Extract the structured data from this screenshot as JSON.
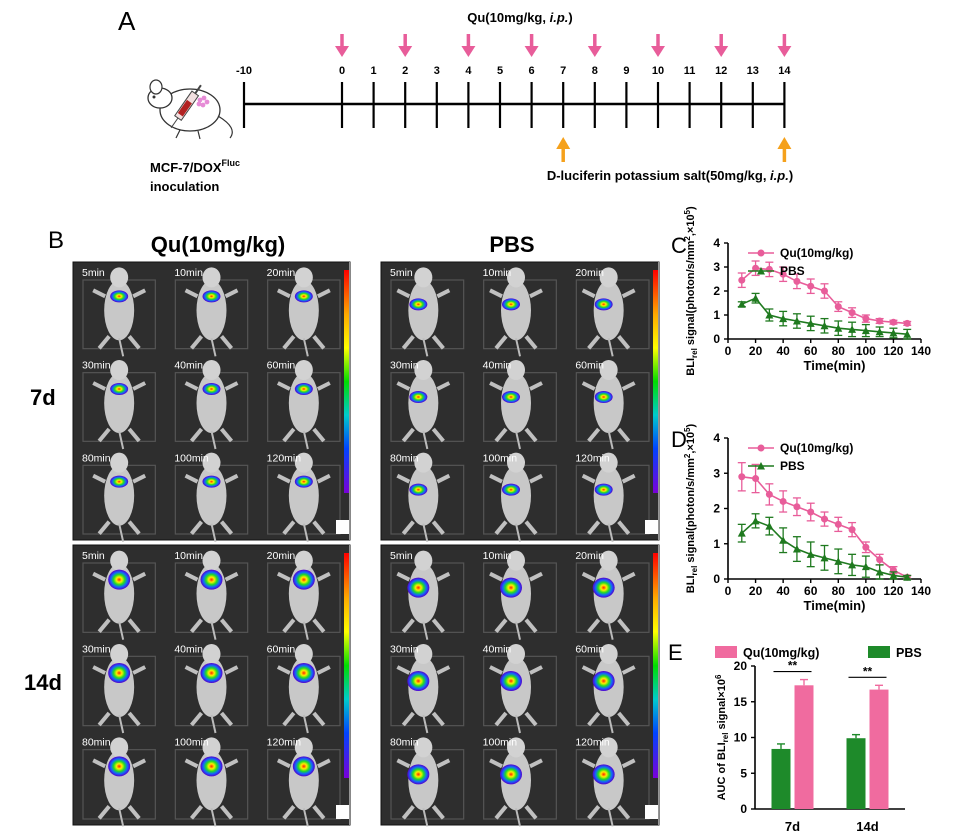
{
  "panel_a": {
    "letter": "A",
    "dose_label": "Qu(10mg/kg, i.p.)",
    "timeline_ticks": [
      "-10",
      "0",
      "1",
      "2",
      "3",
      "4",
      "5",
      "6",
      "7",
      "8",
      "9",
      "10",
      "11",
      "12",
      "13",
      "14"
    ],
    "qu_days": [
      0,
      2,
      4,
      6,
      8,
      10,
      12,
      14
    ],
    "luciferin_days": [
      7,
      14
    ],
    "inoculation_line1": "MCF-7/DOX",
    "inoculation_sup": "Fluc",
    "inoculation_line2": "inoculation",
    "luciferin_label": "D-luciferin potassium salt(50mg/kg, i.p.)",
    "colors": {
      "pink_arrow": "#e85d9a",
      "orange_arrow": "#f5a11c"
    }
  },
  "panel_b": {
    "letter": "B",
    "group_qu": "Qu(10mg/kg)",
    "group_pbs": "PBS",
    "row_7d": "7d",
    "row_14d": "14d",
    "time_labels": [
      "5min",
      "10min",
      "20min",
      "30min",
      "40min",
      "60min",
      "80min",
      "100min",
      "120min"
    ]
  },
  "chart_data": [
    {
      "panel": "C",
      "type": "line",
      "x": [
        10,
        20,
        30,
        40,
        50,
        60,
        70,
        80,
        90,
        100,
        110,
        120,
        130
      ],
      "series": [
        {
          "name": "Qu(10mg/kg)",
          "color": "#e85d9a",
          "marker": "circle",
          "values": [
            2.45,
            2.95,
            2.9,
            2.7,
            2.4,
            2.2,
            2.0,
            1.35,
            1.1,
            0.85,
            0.75,
            0.7,
            0.65
          ],
          "err": [
            0.3,
            0.3,
            0.3,
            0.3,
            0.3,
            0.3,
            0.3,
            0.2,
            0.2,
            0.15,
            0.1,
            0.08,
            0.08
          ]
        },
        {
          "name": "PBS",
          "color": "#1f7a1f",
          "marker": "triangle",
          "values": [
            1.45,
            1.7,
            1.0,
            0.85,
            0.75,
            0.65,
            0.55,
            0.45,
            0.4,
            0.35,
            0.3,
            0.25,
            0.2
          ],
          "err": [
            0.1,
            0.2,
            0.25,
            0.3,
            0.3,
            0.3,
            0.3,
            0.3,
            0.3,
            0.25,
            0.2,
            0.2,
            0.2
          ]
        }
      ],
      "xlabel": "Time(min)",
      "ylabel_parts": {
        "a": "BLI",
        "sub": "rel",
        "b": " signal(photon/s/mm",
        "sup1": "2",
        "c": ",×10",
        "sup2": "5",
        "d": ")"
      },
      "xlim": [
        0,
        140
      ],
      "ylim": [
        0,
        4
      ],
      "xticks": [
        0,
        20,
        40,
        60,
        80,
        100,
        120,
        140
      ],
      "yticks": [
        0,
        1,
        2,
        3,
        4
      ]
    },
    {
      "panel": "D",
      "type": "line",
      "x": [
        10,
        20,
        30,
        40,
        50,
        60,
        70,
        80,
        90,
        100,
        110,
        120,
        130
      ],
      "series": [
        {
          "name": "Qu(10mg/kg)",
          "color": "#e85d9a",
          "marker": "circle",
          "values": [
            2.9,
            2.85,
            2.4,
            2.2,
            2.05,
            1.9,
            1.7,
            1.55,
            1.4,
            0.9,
            0.55,
            0.25,
            0.05
          ],
          "err": [
            0.4,
            0.4,
            0.3,
            0.3,
            0.25,
            0.25,
            0.2,
            0.2,
            0.2,
            0.15,
            0.15,
            0.1,
            0.05
          ]
        },
        {
          "name": "PBS",
          "color": "#1f7a1f",
          "marker": "triangle",
          "values": [
            1.3,
            1.65,
            1.5,
            1.1,
            0.85,
            0.7,
            0.6,
            0.5,
            0.4,
            0.35,
            0.2,
            0.1,
            0.05
          ],
          "err": [
            0.25,
            0.2,
            0.25,
            0.35,
            0.35,
            0.35,
            0.35,
            0.35,
            0.3,
            0.3,
            0.2,
            0.1,
            0.05
          ]
        }
      ],
      "xlabel": "Time(min)",
      "ylabel_parts": {
        "a": "BLI",
        "sub": "rel",
        "b": " signal(photon/s/mm",
        "sup1": "2",
        "c": ",×10",
        "sup2": "5",
        "d": ")"
      },
      "xlim": [
        0,
        140
      ],
      "ylim": [
        0,
        4
      ],
      "xticks": [
        0,
        20,
        40,
        60,
        80,
        100,
        120,
        140
      ],
      "yticks": [
        0,
        1,
        2,
        3,
        4
      ]
    },
    {
      "panel": "E",
      "type": "bar",
      "categories": [
        "7d",
        "14d"
      ],
      "series": [
        {
          "name": "PBS",
          "color": "#1e8a2a",
          "values": [
            8.4,
            9.9
          ],
          "err": [
            0.7,
            0.5
          ]
        },
        {
          "name": "Qu(10mg/kg)",
          "color": "#f06b9f",
          "values": [
            17.3,
            16.7
          ],
          "err": [
            0.8,
            0.6
          ]
        }
      ],
      "significance": [
        "**",
        "**"
      ],
      "ylabel_parts": {
        "a": "AUC of BLI",
        "sub": "rel",
        "b": " signal×10",
        "sup": "6"
      },
      "ylim": [
        0,
        20
      ],
      "yticks": [
        0,
        5,
        10,
        15,
        20
      ]
    }
  ]
}
